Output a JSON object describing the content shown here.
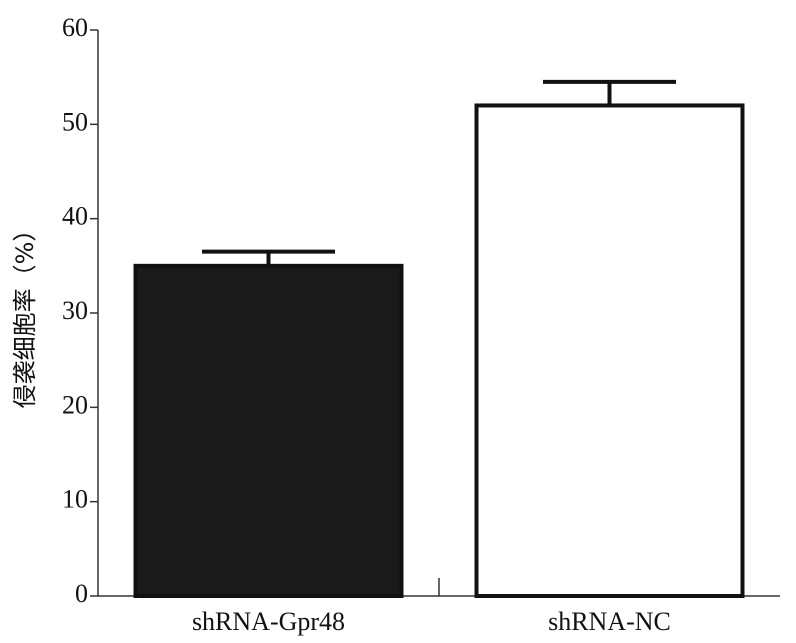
{
  "chart_data": {
    "type": "bar",
    "y_label": "侵袭细胞率（%）",
    "categories": [
      "shRNA-Gpr48",
      "shRNA-NC"
    ],
    "values": [
      35,
      52
    ],
    "errors": [
      1.5,
      2.5
    ],
    "colors": [
      "#1a1a1a",
      "#ffffff"
    ],
    "ylim": [
      0,
      60
    ],
    "yticks": [
      0,
      10,
      20,
      30,
      40,
      50,
      60
    ],
    "grid": false
  }
}
